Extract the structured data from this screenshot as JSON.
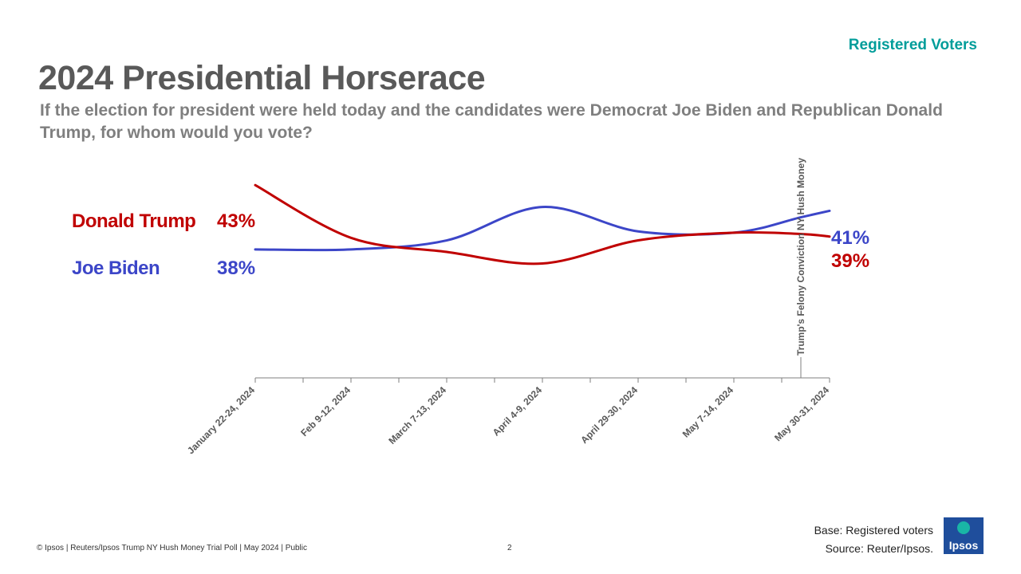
{
  "header": {
    "audience_label": "Registered Voters",
    "title": "2024 Presidential Horserace",
    "subtitle": "If the election for president were held today and the candidates were Democrat Joe Biden and Republican Donald Trump, for whom would you vote?"
  },
  "legend": {
    "trump_name": "Donald Trump",
    "trump_start": "43%",
    "trump_end": "39%",
    "biden_name": "Joe Biden",
    "biden_start": "38%",
    "biden_end": "41%"
  },
  "chart_data": {
    "type": "line",
    "title": "2024 Presidential Horserace",
    "categories": [
      "January 22-24, 2024",
      "Feb 9-12, 2024",
      "March 7-13, 2024",
      "April 4-9, 2024",
      "April 29-30, 2024",
      "May 7-14, 2024",
      "May 30-31, 2024"
    ],
    "x": [
      0,
      1,
      2,
      3,
      4,
      5,
      5.7,
      6
    ],
    "series": [
      {
        "name": "Donald Trump",
        "color": "#c00000",
        "values": [
          43,
          38.9,
          37.8,
          36.9,
          38.7,
          39.3,
          39.2,
          39
        ]
      },
      {
        "name": "Joe Biden",
        "color": "#3c46c8",
        "values": [
          38,
          38,
          38.7,
          41.3,
          39.4,
          39.3,
          40.5,
          41
        ]
      }
    ],
    "annotation": {
      "text": "Trump's Felony Conviction NY Hush Money",
      "x": 5.7
    },
    "ylim": [
      28,
      45
    ],
    "xlabel": "",
    "ylabel": ""
  },
  "footer": {
    "copyright": "© Ipsos | Reuters/Ipsos Trump NY Hush Money Trial Poll | May 2024 | Public",
    "page": "2",
    "base": "Base: Registered voters",
    "source": "Source: Reuter/Ipsos.",
    "logo_text": "Ipsos"
  }
}
